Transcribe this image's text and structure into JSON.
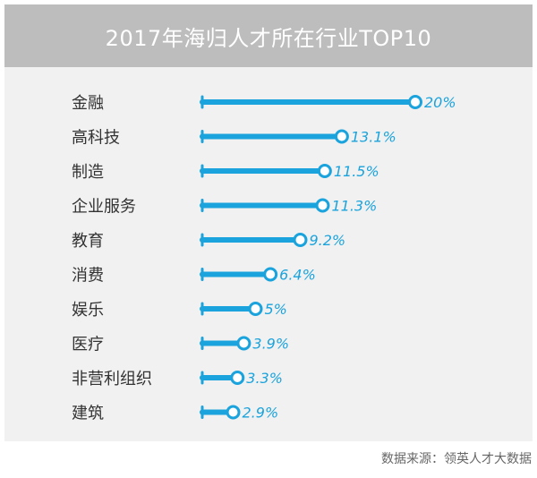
{
  "colors": {
    "accent": "#1aa3dc",
    "panel_bg": "#f1f1f1",
    "header_bg": "#bdbdbd",
    "label": "#333333"
  },
  "chart_data": {
    "type": "bar",
    "title": "2017年海归人才所在行业TOP10",
    "categories": [
      "金融",
      "高科技",
      "制造",
      "企业服务",
      "教育",
      "消费",
      "娱乐",
      "医疗",
      "非营利组织",
      "建筑"
    ],
    "values": [
      20,
      13.1,
      11.5,
      11.3,
      9.2,
      6.4,
      5,
      3.9,
      3.3,
      2.9
    ],
    "value_labels": [
      "20%",
      "13.1%",
      "11.5%",
      "11.3%",
      "9.2%",
      "6.4%",
      "5%",
      "3.9%",
      "3.3%",
      "2.9%"
    ],
    "xlabel": "",
    "ylabel": "",
    "xlim": [
      0,
      20
    ],
    "source": "数据来源：领英人才大数据"
  }
}
